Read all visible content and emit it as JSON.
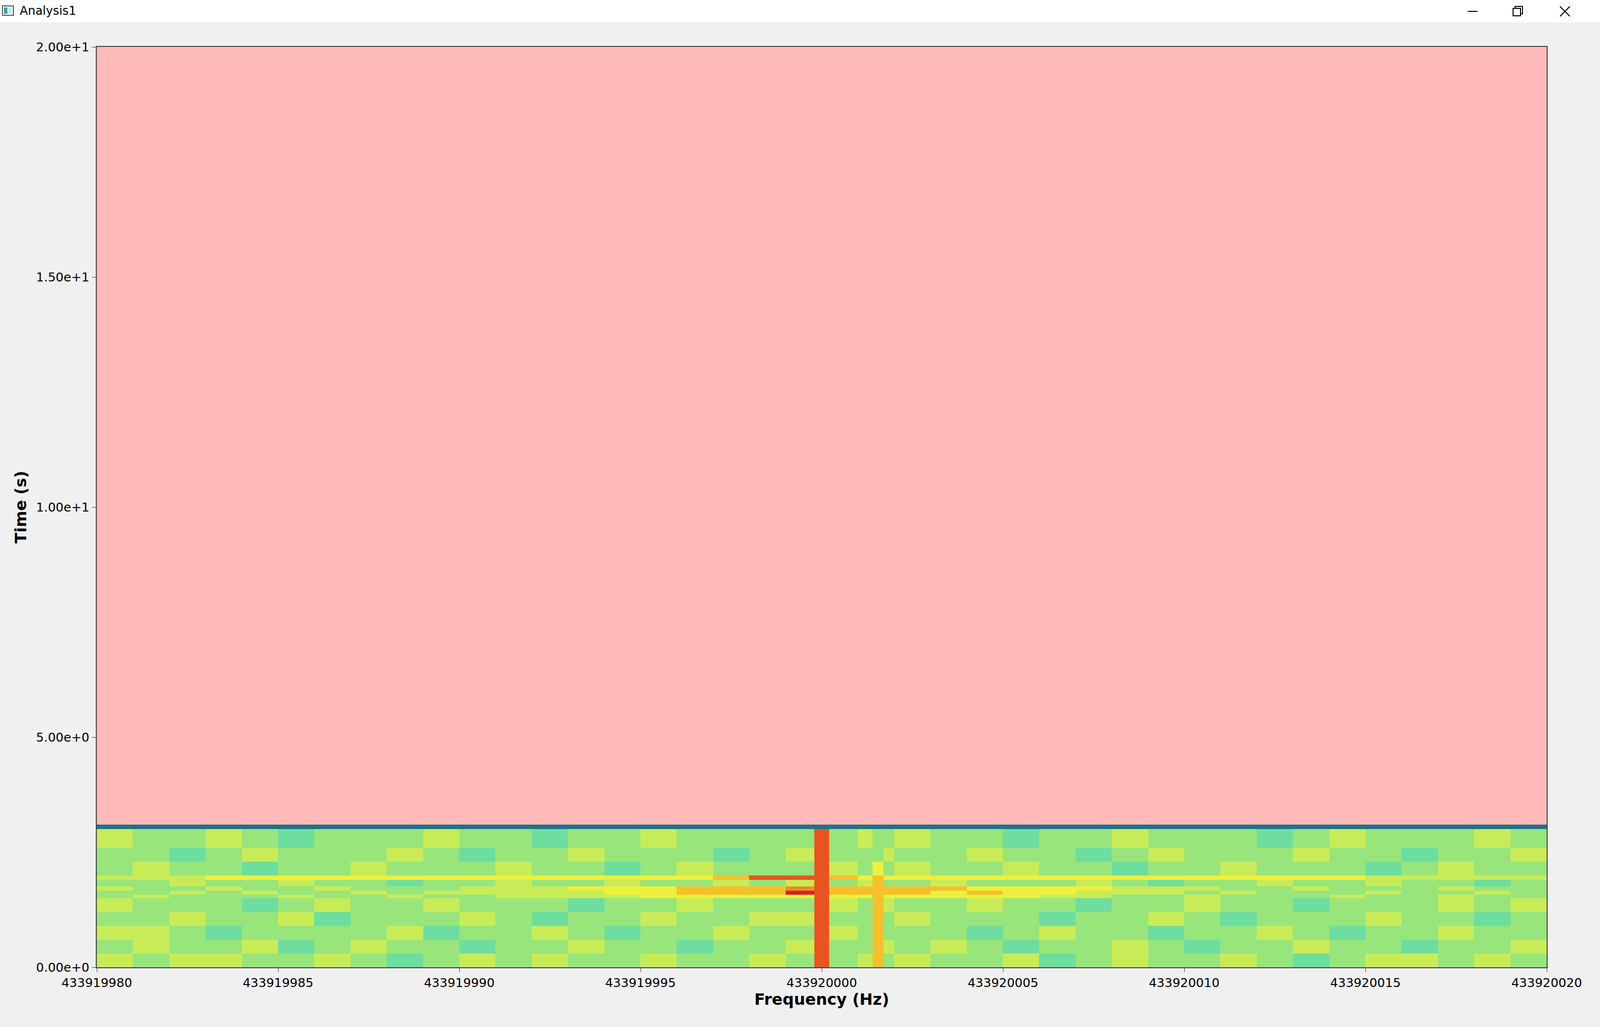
{
  "window_title": "Analysis1",
  "chart_data": {
    "type": "heatmap",
    "x_label": "Frequency (Hz)",
    "y_label": "Time (s)",
    "xlim": [
      433919980,
      433920020
    ],
    "xticks": [
      433919980,
      433919985,
      433919990,
      433919995,
      433920000,
      433920005,
      433920010,
      433920015,
      433920020
    ],
    "ylim": [
      0,
      20
    ],
    "yticks": [
      {
        "value": 0,
        "label": "0.00e+0"
      },
      {
        "value": 5,
        "label": "5.00e+0"
      },
      {
        "value": 10,
        "label": "1.00e+1"
      },
      {
        "value": 15,
        "label": "1.50e+1"
      },
      {
        "value": 20,
        "label": "2.00e+1"
      }
    ],
    "x_edges": [
      433919980,
      433919981,
      433919982,
      433919983,
      433919984,
      433919985,
      433919986,
      433919987,
      433919988,
      433919989,
      433919990,
      433919991,
      433919992,
      433919993,
      433919994,
      433919995,
      433919996,
      433919997,
      433919998,
      433919999,
      433919999.8,
      433920000.2,
      433920001,
      433920001.4,
      433920001.7,
      433920002,
      433920003,
      433920004,
      433920005,
      433920006,
      433920007,
      433920008,
      433920009,
      433920010,
      433920011,
      433920012,
      433920013,
      433920014,
      433920015,
      433920016,
      433920017,
      433920018,
      433920019,
      433920020
    ],
    "y_edges": [
      0,
      0.3,
      0.6,
      0.9,
      1.2,
      1.5,
      1.58,
      1.66,
      1.76,
      1.9,
      2.0,
      2.3,
      2.6,
      3.0,
      3.1
    ],
    "zlim": [
      0,
      10
    ],
    "cells": [
      [
        5,
        4,
        5,
        5,
        4,
        4,
        5,
        4,
        3,
        4,
        5,
        4,
        5,
        4,
        4,
        5,
        4,
        4,
        5,
        4,
        9,
        4,
        5,
        7,
        4,
        5,
        4,
        4,
        5,
        3,
        4,
        5,
        4,
        4,
        5,
        4,
        3,
        4,
        5,
        5,
        4,
        5,
        4
      ],
      [
        4,
        5,
        4,
        4,
        5,
        3,
        4,
        5,
        4,
        4,
        3,
        4,
        4,
        5,
        4,
        4,
        3,
        4,
        4,
        5,
        9,
        4,
        4,
        7,
        5,
        4,
        5,
        4,
        3,
        4,
        4,
        5,
        4,
        3,
        4,
        4,
        5,
        4,
        4,
        3,
        4,
        4,
        5
      ],
      [
        5,
        5,
        4,
        3,
        4,
        4,
        4,
        4,
        5,
        3,
        4,
        4,
        5,
        4,
        3,
        4,
        4,
        5,
        4,
        4,
        9,
        5,
        4,
        7,
        4,
        4,
        4,
        3,
        4,
        5,
        4,
        4,
        3,
        4,
        4,
        5,
        4,
        3,
        4,
        4,
        5,
        4,
        4
      ],
      [
        4,
        4,
        5,
        4,
        4,
        5,
        3,
        4,
        4,
        4,
        5,
        4,
        3,
        4,
        4,
        5,
        4,
        4,
        5,
        5,
        9,
        4,
        4,
        7,
        4,
        5,
        4,
        4,
        4,
        3,
        4,
        4,
        5,
        4,
        3,
        4,
        4,
        4,
        5,
        4,
        4,
        3,
        4
      ],
      [
        5,
        4,
        4,
        4,
        3,
        4,
        5,
        4,
        4,
        5,
        4,
        4,
        4,
        3,
        4,
        4,
        5,
        4,
        4,
        4,
        9,
        5,
        4,
        7,
        5,
        4,
        4,
        5,
        4,
        4,
        3,
        4,
        4,
        5,
        4,
        4,
        3,
        4,
        4,
        4,
        5,
        4,
        5
      ],
      [
        4,
        5,
        4,
        4,
        4,
        5,
        4,
        4,
        5,
        4,
        4,
        5,
        5,
        5,
        5,
        6,
        6,
        6,
        6,
        6,
        9,
        6,
        6,
        7,
        6,
        6,
        6,
        6,
        6,
        5,
        5,
        4,
        4,
        5,
        4,
        4,
        4,
        5,
        4,
        4,
        5,
        4,
        4
      ],
      [
        4,
        4,
        5,
        4,
        5,
        4,
        4,
        5,
        4,
        5,
        5,
        5,
        5,
        5,
        6,
        6,
        7,
        7,
        7,
        10,
        9,
        7,
        7,
        7,
        7,
        7,
        6,
        7,
        6,
        6,
        5,
        5,
        5,
        4,
        5,
        4,
        4,
        4,
        5,
        4,
        4,
        5,
        4
      ],
      [
        5,
        4,
        4,
        5,
        4,
        4,
        5,
        4,
        4,
        4,
        5,
        5,
        5,
        6,
        6,
        6,
        7,
        7,
        7,
        8,
        9,
        7,
        7,
        7,
        7,
        7,
        7,
        6,
        6,
        6,
        6,
        5,
        5,
        5,
        4,
        4,
        5,
        4,
        4,
        4,
        5,
        4,
        4
      ],
      [
        4,
        4,
        5,
        4,
        4,
        5,
        4,
        4,
        3,
        4,
        4,
        5,
        4,
        4,
        5,
        4,
        4,
        5,
        4,
        5,
        9,
        4,
        5,
        7,
        4,
        4,
        5,
        4,
        4,
        4,
        5,
        4,
        3,
        4,
        4,
        5,
        4,
        4,
        5,
        4,
        4,
        3,
        4
      ],
      [
        5,
        5,
        5,
        6,
        6,
        6,
        6,
        6,
        6,
        6,
        6,
        6,
        6,
        6,
        6,
        6,
        6,
        7,
        9,
        9,
        9,
        7,
        6,
        7,
        6,
        6,
        6,
        6,
        6,
        6,
        6,
        6,
        6,
        6,
        6,
        6,
        6,
        6,
        5,
        5,
        5,
        5,
        5
      ],
      [
        4,
        5,
        4,
        4,
        3,
        4,
        4,
        5,
        4,
        4,
        4,
        5,
        4,
        4,
        3,
        4,
        5,
        4,
        4,
        4,
        9,
        5,
        4,
        6,
        4,
        5,
        4,
        4,
        5,
        4,
        4,
        3,
        4,
        4,
        5,
        4,
        4,
        4,
        3,
        4,
        5,
        4,
        4
      ],
      [
        4,
        4,
        3,
        4,
        5,
        4,
        4,
        4,
        5,
        4,
        3,
        4,
        4,
        5,
        4,
        4,
        4,
        3,
        4,
        5,
        9,
        4,
        4,
        4,
        5,
        4,
        4,
        5,
        4,
        4,
        3,
        4,
        5,
        4,
        4,
        4,
        5,
        4,
        4,
        3,
        4,
        4,
        5
      ],
      [
        5,
        4,
        4,
        5,
        4,
        3,
        4,
        4,
        4,
        5,
        4,
        4,
        3,
        4,
        4,
        5,
        4,
        4,
        4,
        4,
        9,
        4,
        5,
        4,
        4,
        5,
        4,
        4,
        3,
        4,
        4,
        5,
        4,
        4,
        4,
        3,
        4,
        5,
        4,
        4,
        4,
        5,
        4
      ],
      [
        0,
        0,
        0,
        0,
        0,
        0,
        0,
        0,
        0,
        0,
        0,
        0,
        0,
        0,
        0,
        0,
        0,
        0,
        0,
        0,
        0,
        0,
        0,
        0,
        0,
        0,
        0,
        0,
        0,
        0,
        0,
        0,
        0,
        0,
        0,
        0,
        0,
        0,
        0,
        0,
        0,
        0,
        0
      ]
    ]
  }
}
